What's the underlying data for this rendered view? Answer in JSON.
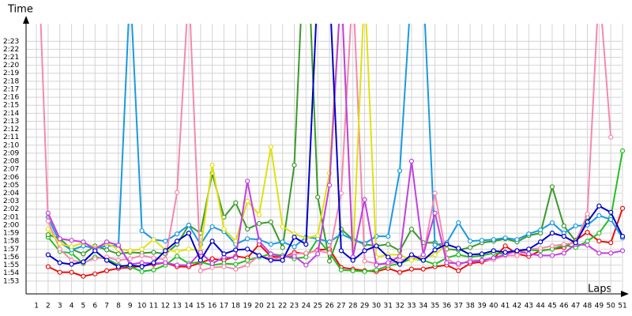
{
  "chart_data": {
    "type": "line",
    "x_label": "Laps",
    "y_label": "Time",
    "x": [
      1,
      2,
      3,
      4,
      5,
      6,
      7,
      8,
      9,
      10,
      11,
      12,
      13,
      14,
      15,
      16,
      17,
      18,
      19,
      20,
      21,
      22,
      23,
      24,
      25,
      26,
      27,
      28,
      29,
      30,
      31,
      32,
      33,
      34,
      35,
      36,
      37,
      38,
      39,
      40,
      41,
      42,
      43,
      44,
      45,
      46,
      47,
      48,
      49,
      50,
      51
    ],
    "xlim": [
      0.12,
      51.47
    ],
    "xticks": [
      1,
      2,
      3,
      4,
      5,
      6,
      7,
      8,
      9,
      10,
      11,
      12,
      13,
      14,
      15,
      16,
      17,
      18,
      19,
      20,
      21,
      22,
      23,
      24,
      25,
      26,
      27,
      28,
      29,
      30,
      31,
      32,
      33,
      34,
      35,
      36,
      37,
      38,
      39,
      40,
      41,
      42,
      43,
      44,
      45,
      46,
      47,
      48,
      49,
      50,
      51
    ],
    "ylim": [
      111.4,
      145.2
    ],
    "yticks": [
      {
        "value": 113,
        "label": "1:53"
      },
      {
        "value": 114,
        "label": "1:54"
      },
      {
        "value": 115,
        "label": "1:55"
      },
      {
        "value": 116,
        "label": "1:56"
      },
      {
        "value": 117,
        "label": "1:57"
      },
      {
        "value": 118,
        "label": "1:58"
      },
      {
        "value": 119,
        "label": "1:59"
      },
      {
        "value": 120,
        "label": "2:00"
      },
      {
        "value": 121,
        "label": "2:01"
      },
      {
        "value": 122,
        "label": "2:02"
      },
      {
        "value": 123,
        "label": "2:03"
      },
      {
        "value": 124,
        "label": "2:04"
      },
      {
        "value": 125,
        "label": "2:05"
      },
      {
        "value": 126,
        "label": "2:06"
      },
      {
        "value": 127,
        "label": "2:07"
      },
      {
        "value": 128,
        "label": "2:08"
      },
      {
        "value": 129,
        "label": "2:09"
      },
      {
        "value": 130,
        "label": "2:10"
      },
      {
        "value": 131,
        "label": "2:11"
      },
      {
        "value": 132,
        "label": "2:12"
      },
      {
        "value": 133,
        "label": "2:13"
      },
      {
        "value": 134,
        "label": "2:14"
      },
      {
        "value": 135,
        "label": "2:15"
      },
      {
        "value": 136,
        "label": "2:16"
      },
      {
        "value": 137,
        "label": "2:17"
      },
      {
        "value": 138,
        "label": "2:18"
      },
      {
        "value": 139,
        "label": "2:19"
      },
      {
        "value": 140,
        "label": "2:20"
      },
      {
        "value": 141,
        "label": "2:21"
      },
      {
        "value": 142,
        "label": "2:22"
      },
      {
        "value": 143,
        "label": "2:23"
      }
    ],
    "grid": true,
    "series": [
      {
        "color": "#e81010",
        "values": [
          null,
          114.8,
          114.1,
          114.1,
          113.6,
          113.9,
          114.3,
          114.6,
          114.7,
          114.9,
          115.1,
          115.3,
          114.8,
          114.8,
          115.3,
          115.8,
          115.6,
          116.1,
          115.9,
          117.6,
          116.1,
          115.9,
          116.6,
          116.4,
          116.9,
          117.0,
          114.7,
          114.5,
          114.3,
          114.2,
          114.6,
          114.1,
          114.5,
          114.5,
          114.8,
          115.0,
          114.3,
          115.2,
          115.4,
          115.8,
          117.4,
          116.4,
          116.1,
          116.8,
          117.0,
          117.2,
          118.1,
          119.1,
          118.0,
          117.8,
          122.1
        ]
      },
      {
        "color": "#22c022",
        "values": [
          null,
          118.5,
          116.7,
          116.5,
          115.2,
          116.0,
          115.8,
          115.0,
          114.8,
          114.2,
          114.4,
          115.0,
          116.1,
          115.2,
          115.4,
          115.0,
          115.2,
          115.1,
          115.6,
          116.0,
          116.4,
          116.2,
          115.8,
          116.0,
          118.3,
          116.5,
          114.4,
          114.3,
          114.2,
          114.4,
          114.9,
          115.2,
          115.8,
          115.6,
          115.1,
          115.9,
          116.3,
          116.0,
          116.2,
          116.5,
          116.4,
          116.8,
          116.9,
          116.8,
          117.0,
          117.5,
          117.2,
          118.0,
          119.0,
          121.0,
          129.3
        ]
      },
      {
        "color": "#3a9a2a",
        "values": [
          null,
          118.8,
          118.3,
          117.0,
          116.4,
          117.4,
          116.9,
          116.4,
          116.6,
          116.5,
          116.6,
          116.4,
          117.6,
          120.0,
          119.0,
          126.5,
          121.0,
          122.8,
          119.5,
          120.2,
          120.4,
          117.2,
          127.5,
          160,
          123.5,
          115.5,
          119.5,
          118.2,
          117.6,
          117.4,
          117.6,
          116.8,
          119.5,
          117.8,
          117.8,
          117.0,
          116.9,
          117.2,
          117.8,
          118.0,
          118.3,
          117.9,
          118.7,
          119.0,
          124.8,
          119.9,
          118.0,
          121.0,
          null,
          null,
          null
        ]
      },
      {
        "color": "#1a9ae0",
        "values": [
          null,
          121.0,
          117.8,
          116.9,
          117.4,
          117.1,
          117.4,
          117.4,
          150,
          119.3,
          118.2,
          118.0,
          118.9,
          120.0,
          117.6,
          119.8,
          119.2,
          117.6,
          118.3,
          118.2,
          117.6,
          117.9,
          117.3,
          118.5,
          118.3,
          117.9,
          118.9,
          118.2,
          117.7,
          118.6,
          118.6,
          126.8,
          150,
          150,
          117.5,
          117.8,
          120.3,
          118.0,
          118.1,
          118.2,
          118.4,
          118.2,
          118.9,
          119.4,
          120.3,
          119.0,
          119.9,
          120.0,
          121.2,
          120.7,
          118.4
        ]
      },
      {
        "color": "#f588b0",
        "values": [
          160,
          120.5,
          117.0,
          115.6,
          115.3,
          115.8,
          116.0,
          115.6,
          115.8,
          116.2,
          115.9,
          115.7,
          124.1,
          150,
          114.3,
          114.7,
          114.8,
          114.5,
          115.0,
          116.2,
          115.8,
          115.9,
          116.4,
          116.5,
          116.8,
          116.5,
          124.0,
          150,
          115.5,
          115.2,
          115.1,
          115.6,
          115.9,
          116.2,
          124.0,
          115.8,
          115.0,
          115.6,
          115.6,
          115.7,
          116.2,
          116.2,
          117.0,
          117.1,
          117.4,
          117.6,
          117.8,
          121.4,
          150,
          131.0,
          null
        ]
      },
      {
        "color": "#e0e010",
        "values": [
          null,
          119.5,
          117.7,
          117.3,
          117.8,
          117.2,
          117.7,
          117.0,
          116.8,
          117.0,
          118.2,
          116.9,
          116.7,
          117.0,
          116.8,
          127.5,
          119.5,
          118.0,
          123.0,
          121.3,
          129.8,
          119.8,
          118.9,
          118.4,
          118.7,
          126.5,
          150,
          115.8,
          150,
          116.0,
          116.3,
          116.3,
          115.6,
          115.9,
          116.3,
          117.5,
          null,
          null,
          null,
          null,
          null,
          null,
          null,
          null,
          null,
          null,
          null,
          null,
          null,
          null,
          null
        ]
      },
      {
        "color": "#c040e0",
        "values": [
          null,
          121.5,
          118.3,
          118.1,
          117.9,
          117.0,
          117.9,
          117.5,
          115.1,
          115.3,
          115.2,
          115.3,
          115.0,
          115.0,
          116.6,
          115.2,
          116.0,
          115.9,
          125.5,
          118.0,
          116.4,
          116.0,
          116.1,
          115.0,
          116.4,
          125.0,
          150,
          116.0,
          123.2,
          115.0,
          115.3,
          116.1,
          128.0,
          116.3,
          121.5,
          115.3,
          115.2,
          115.4,
          115.6,
          115.9,
          116.3,
          116.8,
          116.4,
          116.2,
          116.2,
          116.5,
          117.6,
          117.5,
          116.5,
          116.5,
          116.8
        ]
      },
      {
        "color": "#0000c8",
        "values": [
          null,
          116.3,
          115.3,
          115.1,
          115.4,
          116.8,
          115.6,
          114.8,
          115.0,
          114.8,
          115.3,
          116.8,
          118.0,
          119.0,
          115.6,
          118.0,
          116.4,
          116.9,
          117.0,
          116.2,
          115.6,
          115.6,
          118.5,
          117.6,
          150,
          150,
          116.8,
          115.6,
          116.8,
          117.4,
          116.0,
          115.1,
          116.3,
          115.6,
          116.9,
          117.6,
          117.1,
          116.3,
          116.4,
          116.8,
          116.6,
          116.8,
          117.0,
          117.9,
          119.0,
          118.6,
          117.8,
          120.4,
          122.4,
          121.6,
          118.6
        ]
      }
    ]
  }
}
